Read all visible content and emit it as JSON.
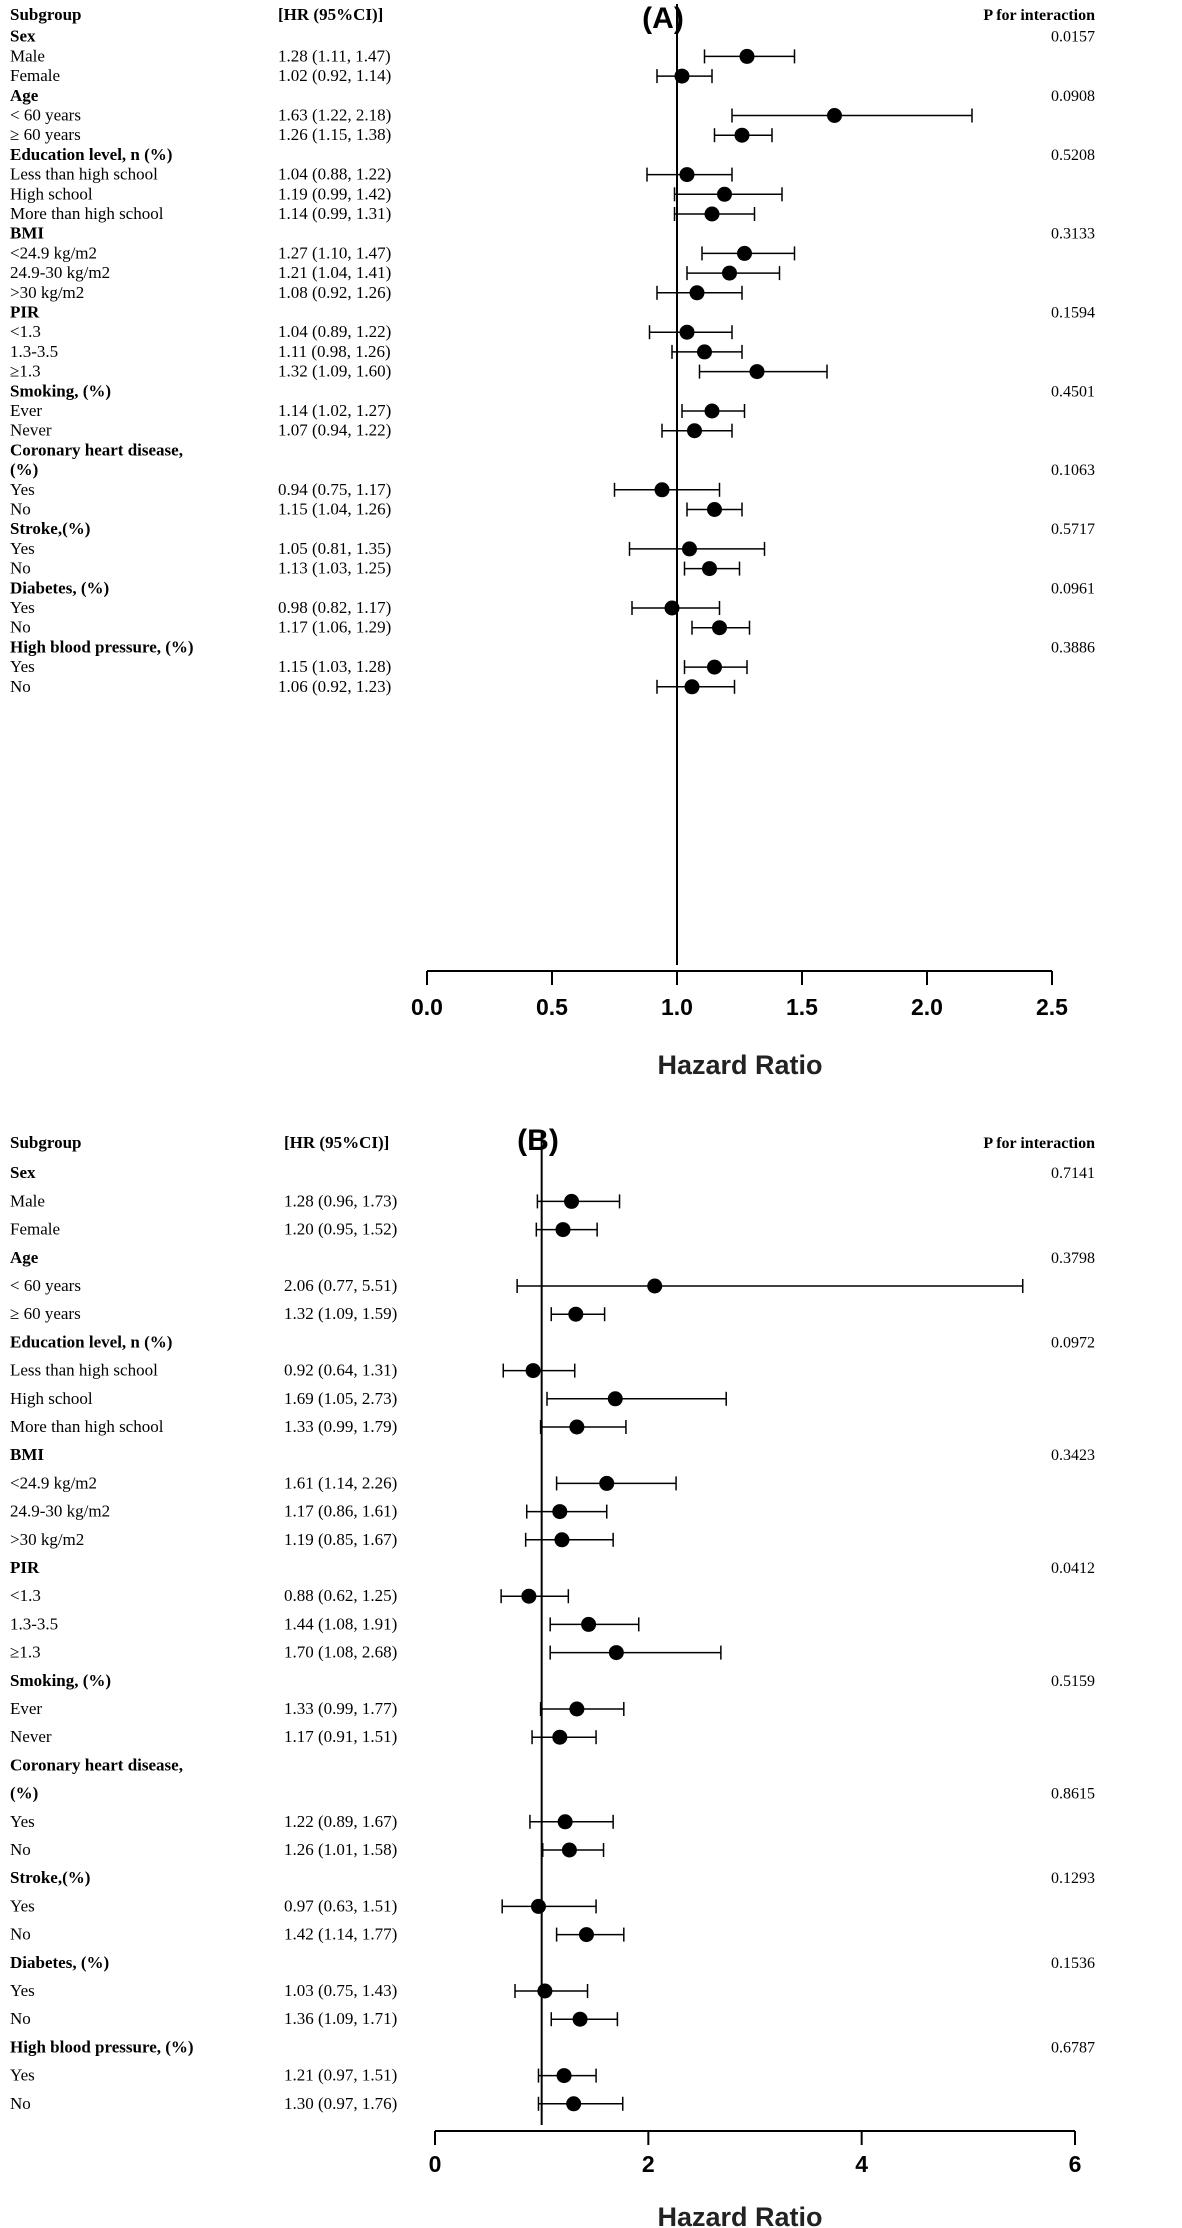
{
  "panels": [
    {
      "id": "A",
      "label": "(A)",
      "header": {
        "subgroup": "Subgroup",
        "hr": "[HR (95%CI)]",
        "p": "P for interaction"
      },
      "rows": [
        {
          "kind": "group",
          "label": "Sex",
          "p": "0.0157"
        },
        {
          "kind": "item",
          "label": "Male",
          "hr_text": "1.28 (1.11, 1.47)"
        },
        {
          "kind": "item",
          "label": "Female",
          "hr_text": "1.02 (0.92, 1.14)"
        },
        {
          "kind": "group",
          "label": "Age",
          "p": "0.0908"
        },
        {
          "kind": "item",
          "label": "< 60 years",
          "hr_text": "1.63 (1.22, 2.18)"
        },
        {
          "kind": "item",
          "label": "≥ 60 years",
          "hr_text": "1.26 (1.15, 1.38)"
        },
        {
          "kind": "group",
          "label": "Education level, n (%)",
          "p": "0.5208"
        },
        {
          "kind": "item",
          "label": "Less than high school",
          "hr_text": "1.04 (0.88, 1.22)"
        },
        {
          "kind": "item",
          "label": "High school",
          "hr_text": "1.19 (0.99, 1.42)"
        },
        {
          "kind": "item",
          "label": "More than high school",
          "hr_text": "1.14 (0.99, 1.31)"
        },
        {
          "kind": "group",
          "label": "BMI",
          "p": "0.3133"
        },
        {
          "kind": "item",
          "label": "<24.9 kg/m2",
          "hr_text": "1.27 (1.10, 1.47)"
        },
        {
          "kind": "item",
          "label": "24.9-30 kg/m2",
          "hr_text": "1.21 (1.04, 1.41)"
        },
        {
          "kind": "item",
          "label": ">30 kg/m2",
          "hr_text": "1.08 (0.92, 1.26)"
        },
        {
          "kind": "group",
          "label": "PIR",
          "p": "0.1594"
        },
        {
          "kind": "item",
          "label": "<1.3",
          "hr_text": "1.04 (0.89, 1.22)"
        },
        {
          "kind": "item",
          "label": "1.3-3.5",
          "hr_text": "1.11 (0.98, 1.26)"
        },
        {
          "kind": "item",
          "label": "≥1.3",
          "hr_text": "1.32 (1.09, 1.60)"
        },
        {
          "kind": "group",
          "label": "Smoking, (%)",
          "p": "0.4501"
        },
        {
          "kind": "item",
          "label": "Ever",
          "hr_text": "1.14 (1.02, 1.27)"
        },
        {
          "kind": "item",
          "label": "Never",
          "hr_text": "1.07 (0.94, 1.22)"
        },
        {
          "kind": "group",
          "label": "Coronary heart disease,",
          "p": ""
        },
        {
          "kind": "group",
          "label": "(%)",
          "p": "0.1063"
        },
        {
          "kind": "item",
          "label": "Yes",
          "hr_text": "0.94 (0.75, 1.17)"
        },
        {
          "kind": "item",
          "label": "No",
          "hr_text": "1.15 (1.04, 1.26)"
        },
        {
          "kind": "group",
          "label": "Stroke,(%)",
          "p": "0.5717"
        },
        {
          "kind": "item",
          "label": "Yes",
          "hr_text": "1.05 (0.81, 1.35)"
        },
        {
          "kind": "item",
          "label": "No",
          "hr_text": "1.13 (1.03, 1.25)"
        },
        {
          "kind": "group",
          "label": "Diabetes, (%)",
          "p": "0.0961"
        },
        {
          "kind": "item",
          "label": "Yes",
          "hr_text": "0.98 (0.82, 1.17)"
        },
        {
          "kind": "item",
          "label": "No",
          "hr_text": "1.17 (1.06, 1.29)"
        },
        {
          "kind": "group",
          "label": "High blood pressure, (%)",
          "p": "0.3886"
        },
        {
          "kind": "item",
          "label": "Yes",
          "hr_text": "1.15 (1.03, 1.28)"
        },
        {
          "kind": "item",
          "label": "No",
          "hr_text": "1.06 (0.92, 1.23)"
        }
      ],
      "axis": {
        "label": "Hazard Ratio",
        "ticks": [
          "0.0",
          "0.5",
          "1.0",
          "1.5",
          "2.0",
          "2.5"
        ]
      }
    },
    {
      "id": "B",
      "label": "(B)",
      "header": {
        "subgroup": "Subgroup",
        "hr": "[HR (95%CI)]",
        "p": "P for interaction"
      },
      "rows": [
        {
          "kind": "group",
          "label": "Sex",
          "p": "0.7141"
        },
        {
          "kind": "item",
          "label": "Male",
          "hr_text": "1.28 (0.96, 1.73)"
        },
        {
          "kind": "item",
          "label": "Female",
          "hr_text": "1.20 (0.95, 1.52)"
        },
        {
          "kind": "group",
          "label": "Age",
          "p": "0.3798"
        },
        {
          "kind": "item",
          "label": "< 60 years",
          "hr_text": "2.06 (0.77, 5.51)"
        },
        {
          "kind": "item",
          "label": "≥ 60 years",
          "hr_text": "1.32 (1.09, 1.59)"
        },
        {
          "kind": "group",
          "label": "Education level, n (%)",
          "p": "0.0972"
        },
        {
          "kind": "item",
          "label": "Less than high school",
          "hr_text": "0.92 (0.64, 1.31)"
        },
        {
          "kind": "item",
          "label": "High school",
          "hr_text": "1.69 (1.05, 2.73)"
        },
        {
          "kind": "item",
          "label": "More than high school",
          "hr_text": "1.33 (0.99, 1.79)"
        },
        {
          "kind": "group",
          "label": "BMI",
          "p": "0.3423"
        },
        {
          "kind": "item",
          "label": "<24.9 kg/m2",
          "hr_text": "1.61 (1.14, 2.26)"
        },
        {
          "kind": "item",
          "label": "24.9-30 kg/m2",
          "hr_text": "1.17 (0.86, 1.61)"
        },
        {
          "kind": "item",
          "label": ">30 kg/m2",
          "hr_text": "1.19 (0.85, 1.67)"
        },
        {
          "kind": "group",
          "label": "PIR",
          "p": "0.0412"
        },
        {
          "kind": "item",
          "label": "<1.3",
          "hr_text": "0.88 (0.62, 1.25)"
        },
        {
          "kind": "item",
          "label": "1.3-3.5",
          "hr_text": "1.44 (1.08, 1.91)"
        },
        {
          "kind": "item",
          "label": "≥1.3",
          "hr_text": "1.70 (1.08, 2.68)"
        },
        {
          "kind": "group",
          "label": "Smoking, (%)",
          "p": "0.5159"
        },
        {
          "kind": "item",
          "label": "Ever",
          "hr_text": "1.33 (0.99, 1.77)"
        },
        {
          "kind": "item",
          "label": "Never",
          "hr_text": "1.17 (0.91, 1.51)"
        },
        {
          "kind": "group",
          "label": "Coronary heart disease,",
          "p": ""
        },
        {
          "kind": "group",
          "label": "(%)",
          "p": "0.8615"
        },
        {
          "kind": "item",
          "label": "Yes",
          "hr_text": "1.22 (0.89, 1.67)"
        },
        {
          "kind": "item",
          "label": "No",
          "hr_text": "1.26 (1.01, 1.58)"
        },
        {
          "kind": "group",
          "label": "Stroke,(%)",
          "p": "0.1293"
        },
        {
          "kind": "item",
          "label": "Yes",
          "hr_text": "0.97 (0.63, 1.51)"
        },
        {
          "kind": "item",
          "label": "No",
          "hr_text": "1.42 (1.14, 1.77)"
        },
        {
          "kind": "group",
          "label": "Diabetes, (%)",
          "p": "0.1536"
        },
        {
          "kind": "item",
          "label": "Yes",
          "hr_text": "1.03 (0.75, 1.43)"
        },
        {
          "kind": "item",
          "label": "No",
          "hr_text": "1.36 (1.09, 1.71)"
        },
        {
          "kind": "group",
          "label": "High blood pressure, (%)",
          "p": "0.6787"
        },
        {
          "kind": "item",
          "label": "Yes",
          "hr_text": "1.21 (0.97, 1.51)"
        },
        {
          "kind": "item",
          "label": "No",
          "hr_text": "1.30 (0.97, 1.76)"
        }
      ],
      "axis": {
        "label": "Hazard Ratio",
        "ticks": [
          "0",
          "2",
          "4",
          "6"
        ]
      }
    }
  ],
  "chart_data": [
    {
      "type": "forest",
      "panel": "A",
      "title": "(A)",
      "xlabel": "Hazard Ratio",
      "xlim": [
        0,
        2.5
      ],
      "xticks": [
        0.0,
        0.5,
        1.0,
        1.5,
        2.0,
        2.5
      ],
      "reference_line": 1.0,
      "points": [
        {
          "label": "Male",
          "hr": 1.28,
          "lo": 1.11,
          "hi": 1.47
        },
        {
          "label": "Female",
          "hr": 1.02,
          "lo": 0.92,
          "hi": 1.14
        },
        {
          "label": "< 60 years",
          "hr": 1.63,
          "lo": 1.22,
          "hi": 2.18
        },
        {
          "label": "≥ 60 years",
          "hr": 1.26,
          "lo": 1.15,
          "hi": 1.38
        },
        {
          "label": "Less than high school",
          "hr": 1.04,
          "lo": 0.88,
          "hi": 1.22
        },
        {
          "label": "High school",
          "hr": 1.19,
          "lo": 0.99,
          "hi": 1.42
        },
        {
          "label": "More than high school",
          "hr": 1.14,
          "lo": 0.99,
          "hi": 1.31
        },
        {
          "label": "<24.9 kg/m2",
          "hr": 1.27,
          "lo": 1.1,
          "hi": 1.47
        },
        {
          "label": "24.9-30 kg/m2",
          "hr": 1.21,
          "lo": 1.04,
          "hi": 1.41
        },
        {
          "label": ">30 kg/m2",
          "hr": 1.08,
          "lo": 0.92,
          "hi": 1.26
        },
        {
          "label": "<1.3",
          "hr": 1.04,
          "lo": 0.89,
          "hi": 1.22
        },
        {
          "label": "1.3-3.5",
          "hr": 1.11,
          "lo": 0.98,
          "hi": 1.26
        },
        {
          "label": "≥1.3",
          "hr": 1.32,
          "lo": 1.09,
          "hi": 1.6
        },
        {
          "label": "Ever",
          "hr": 1.14,
          "lo": 1.02,
          "hi": 1.27
        },
        {
          "label": "Never",
          "hr": 1.07,
          "lo": 0.94,
          "hi": 1.22
        },
        {
          "label": "Yes",
          "hr": 0.94,
          "lo": 0.75,
          "hi": 1.17
        },
        {
          "label": "No",
          "hr": 1.15,
          "lo": 1.04,
          "hi": 1.26
        },
        {
          "label": "Yes",
          "hr": 1.05,
          "lo": 0.81,
          "hi": 1.35
        },
        {
          "label": "No",
          "hr": 1.13,
          "lo": 1.03,
          "hi": 1.25
        },
        {
          "label": "Yes",
          "hr": 0.98,
          "lo": 0.82,
          "hi": 1.17
        },
        {
          "label": "No",
          "hr": 1.17,
          "lo": 1.06,
          "hi": 1.29
        },
        {
          "label": "Yes",
          "hr": 1.15,
          "lo": 1.03,
          "hi": 1.28
        },
        {
          "label": "No",
          "hr": 1.06,
          "lo": 0.92,
          "hi": 1.23
        }
      ]
    },
    {
      "type": "forest",
      "panel": "B",
      "title": "(B)",
      "xlabel": "Hazard Ratio",
      "xlim": [
        0,
        6
      ],
      "xticks": [
        0,
        2,
        4,
        6
      ],
      "reference_line": 1.0,
      "points": [
        {
          "label": "Male",
          "hr": 1.28,
          "lo": 0.96,
          "hi": 1.73
        },
        {
          "label": "Female",
          "hr": 1.2,
          "lo": 0.95,
          "hi": 1.52
        },
        {
          "label": "< 60 years",
          "hr": 2.06,
          "lo": 0.77,
          "hi": 5.51
        },
        {
          "label": "≥ 60 years",
          "hr": 1.32,
          "lo": 1.09,
          "hi": 1.59
        },
        {
          "label": "Less than high school",
          "hr": 0.92,
          "lo": 0.64,
          "hi": 1.31
        },
        {
          "label": "High school",
          "hr": 1.69,
          "lo": 1.05,
          "hi": 2.73
        },
        {
          "label": "More than high school",
          "hr": 1.33,
          "lo": 0.99,
          "hi": 1.79
        },
        {
          "label": "<24.9 kg/m2",
          "hr": 1.61,
          "lo": 1.14,
          "hi": 2.26
        },
        {
          "label": "24.9-30 kg/m2",
          "hr": 1.17,
          "lo": 0.86,
          "hi": 1.61
        },
        {
          "label": ">30 kg/m2",
          "hr": 1.19,
          "lo": 0.85,
          "hi": 1.67
        },
        {
          "label": "<1.3",
          "hr": 0.88,
          "lo": 0.62,
          "hi": 1.25
        },
        {
          "label": "1.3-3.5",
          "hr": 1.44,
          "lo": 1.08,
          "hi": 1.91
        },
        {
          "label": "≥1.3",
          "hr": 1.7,
          "lo": 1.08,
          "hi": 2.68
        },
        {
          "label": "Ever",
          "hr": 1.33,
          "lo": 0.99,
          "hi": 1.77
        },
        {
          "label": "Never",
          "hr": 1.17,
          "lo": 0.91,
          "hi": 1.51
        },
        {
          "label": "Yes",
          "hr": 1.22,
          "lo": 0.89,
          "hi": 1.67
        },
        {
          "label": "No",
          "hr": 1.26,
          "lo": 1.01,
          "hi": 1.58
        },
        {
          "label": "Yes",
          "hr": 0.97,
          "lo": 0.63,
          "hi": 1.51
        },
        {
          "label": "No",
          "hr": 1.42,
          "lo": 1.14,
          "hi": 1.77
        },
        {
          "label": "Yes",
          "hr": 1.03,
          "lo": 0.75,
          "hi": 1.43
        },
        {
          "label": "No",
          "hr": 1.36,
          "lo": 1.09,
          "hi": 1.71
        },
        {
          "label": "Yes",
          "hr": 1.21,
          "lo": 0.97,
          "hi": 1.51
        },
        {
          "label": "No",
          "hr": 1.3,
          "lo": 0.97,
          "hi": 1.76
        }
      ]
    }
  ]
}
